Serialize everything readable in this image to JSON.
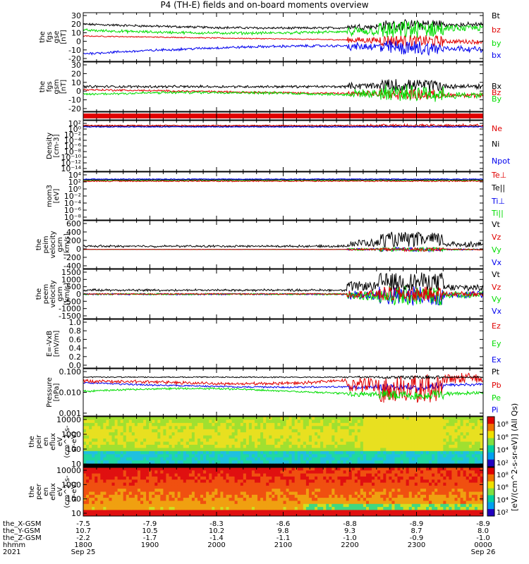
{
  "title": "P4 (TH-E) fields and on-board moments overview",
  "colors": {
    "black": "#000000",
    "red": "#e00000",
    "green": "#00dd00",
    "blue": "#0000ee"
  },
  "chart_data": [
    {
      "type": "line",
      "name": "fgs_gse",
      "ylabel": [
        "the",
        "fgs",
        "gse",
        "[nT]"
      ],
      "ylim": [
        -20,
        30
      ],
      "ticks": [
        "30",
        "20",
        "10",
        "0",
        "-10",
        "-20"
      ],
      "legend": [
        {
          "label": "Bt",
          "color": "black"
        },
        {
          "label": "bz",
          "color": "red"
        },
        {
          "label": "by",
          "color": "green"
        },
        {
          "label": "bx",
          "color": "blue"
        }
      ]
    },
    {
      "type": "line",
      "name": "fgs_gsm",
      "ylabel": [
        "the",
        "fgs",
        "gsm",
        "[nT]"
      ],
      "ylim": [
        -20,
        30
      ],
      "ticks": [
        "30",
        "20",
        "10",
        "0",
        "-10",
        "-20"
      ],
      "legend": [
        {
          "label": "Bx",
          "color": "black"
        },
        {
          "label": "Bz",
          "color": "red"
        },
        {
          "label": "By",
          "color": "green"
        }
      ]
    },
    {
      "type": "bar",
      "name": "flags",
      "ylabel": []
    },
    {
      "type": "line",
      "name": "density",
      "ylabel": [
        "Density",
        "[cm-3]"
      ],
      "ticks": [
        "10²",
        "10⁰",
        "10⁻²",
        "10⁻⁴",
        "10⁻⁶",
        "10⁻⁸",
        "10⁻¹⁰",
        "10⁻¹²",
        "10⁻¹⁴"
      ],
      "legend": [
        {
          "label": "Ne",
          "color": "red"
        },
        {
          "label": "Ni",
          "color": "black"
        },
        {
          "label": "Npot",
          "color": "blue"
        }
      ]
    },
    {
      "type": "line",
      "name": "temperature",
      "ylabel": [
        "mom3",
        "[eV]"
      ],
      "ticks": [
        "10⁴",
        "10²",
        "10⁰",
        "10⁻²",
        "10⁻⁴",
        "10⁻⁶",
        "10⁻⁸"
      ],
      "legend": [
        {
          "label": "Te⊥",
          "color": "red"
        },
        {
          "label": "Te||",
          "color": "black"
        },
        {
          "label": "Ti⊥",
          "color": "blue"
        },
        {
          "label": "Ti||",
          "color": "green"
        }
      ]
    },
    {
      "type": "line",
      "name": "peim_velocity",
      "ylabel": [
        "the",
        "peim",
        "velocity",
        "gsm",
        "[km/s]"
      ],
      "ylim": [
        -400,
        600
      ],
      "ticks": [
        "600",
        "400",
        "200",
        "0",
        "-200",
        "-400"
      ],
      "legend": [
        {
          "label": "Vt",
          "color": "black"
        },
        {
          "label": "Vz",
          "color": "red"
        },
        {
          "label": "Vy",
          "color": "green"
        },
        {
          "label": "Vx",
          "color": "blue"
        }
      ]
    },
    {
      "type": "line",
      "name": "peem_velocity",
      "ylabel": [
        "the",
        "peem",
        "velocity",
        "gsm",
        "[km/s]"
      ],
      "ylim": [
        -1500,
        1500
      ],
      "ticks": [
        "1500",
        "1000",
        "500",
        "0",
        "-500",
        "-1000",
        "-1500"
      ],
      "legend": [
        {
          "label": "Vt",
          "color": "black"
        },
        {
          "label": "Vz",
          "color": "red"
        },
        {
          "label": "Vy",
          "color": "green"
        },
        {
          "label": "Vx",
          "color": "blue"
        }
      ]
    },
    {
      "type": "line",
      "name": "efield",
      "ylabel": [
        "E=-VxB",
        "[mV/m]"
      ],
      "ylim": [
        0,
        1
      ],
      "ticks": [
        "1.0",
        "0.8",
        "0.6",
        "0.4",
        "0.2",
        "0.0"
      ],
      "legend": [
        {
          "label": "Ez",
          "color": "red"
        },
        {
          "label": "Ey",
          "color": "green"
        },
        {
          "label": "Ex",
          "color": "blue"
        }
      ]
    },
    {
      "type": "line",
      "name": "pressure",
      "ylabel": [
        "Pressure",
        "[nPa]"
      ],
      "ticks": [
        "0.100",
        "0.010",
        "0.001"
      ],
      "legend": [
        {
          "label": "Pt",
          "color": "black"
        },
        {
          "label": "Pb",
          "color": "red"
        },
        {
          "label": "Pe",
          "color": "green"
        },
        {
          "label": "Pi",
          "color": "blue"
        }
      ]
    },
    {
      "type": "heatmap",
      "name": "peir_eflux",
      "ylabel": [
        "the",
        "peir",
        "en",
        "eflux",
        "eV",
        "(cm^2-s-",
        "sr-eV)"
      ],
      "ticks": [
        "10000",
        "1000",
        "100",
        "10"
      ]
    },
    {
      "type": "heatmap",
      "name": "peer_eflux",
      "ylabel": [
        "the",
        "peer",
        "en",
        "eflux",
        "eV",
        "(cm^2-s-",
        "sr-eV)"
      ],
      "ticks": [
        "10000",
        "1000",
        "100",
        "10"
      ]
    }
  ],
  "colorbars": [
    {
      "label": "[eV/(cm^2-s-sr-eV)] (All Qs)",
      "ticks": [
        "10⁸",
        "10⁶",
        "10⁴",
        "10²"
      ]
    },
    {
      "label": "[eV/(cm^2-s-sr-eV)] (All Qs)",
      "ticks": [
        "10⁸",
        "10⁶",
        "10⁴",
        "10²"
      ]
    }
  ],
  "xaxis": {
    "row_labels": [
      "the_X-GSM",
      "the_Y-GSM",
      "the_Z-GSM",
      "hhmm",
      "2021"
    ],
    "columns": [
      {
        "x_gsm": "-7.5",
        "y_gsm": "10.7",
        "z_gsm": "-2.2",
        "hhmm": "1800",
        "date": "Sep 25"
      },
      {
        "x_gsm": "-7.9",
        "y_gsm": "10.5",
        "z_gsm": "-1.7",
        "hhmm": "1900",
        "date": ""
      },
      {
        "x_gsm": "-8.3",
        "y_gsm": "10.2",
        "z_gsm": "-1.4",
        "hhmm": "2000",
        "date": ""
      },
      {
        "x_gsm": "-8.6",
        "y_gsm": "9.8",
        "z_gsm": "-1.1",
        "hhmm": "2100",
        "date": ""
      },
      {
        "x_gsm": "-8.8",
        "y_gsm": "9.3",
        "z_gsm": "-1.0",
        "hhmm": "2200",
        "date": ""
      },
      {
        "x_gsm": "-8.9",
        "y_gsm": "8.7",
        "z_gsm": "-0.9",
        "hhmm": "2300",
        "date": ""
      },
      {
        "x_gsm": "-8.9",
        "y_gsm": "8.0",
        "z_gsm": "-1.0",
        "hhmm": "0000",
        "date": "Sep 26"
      }
    ]
  }
}
